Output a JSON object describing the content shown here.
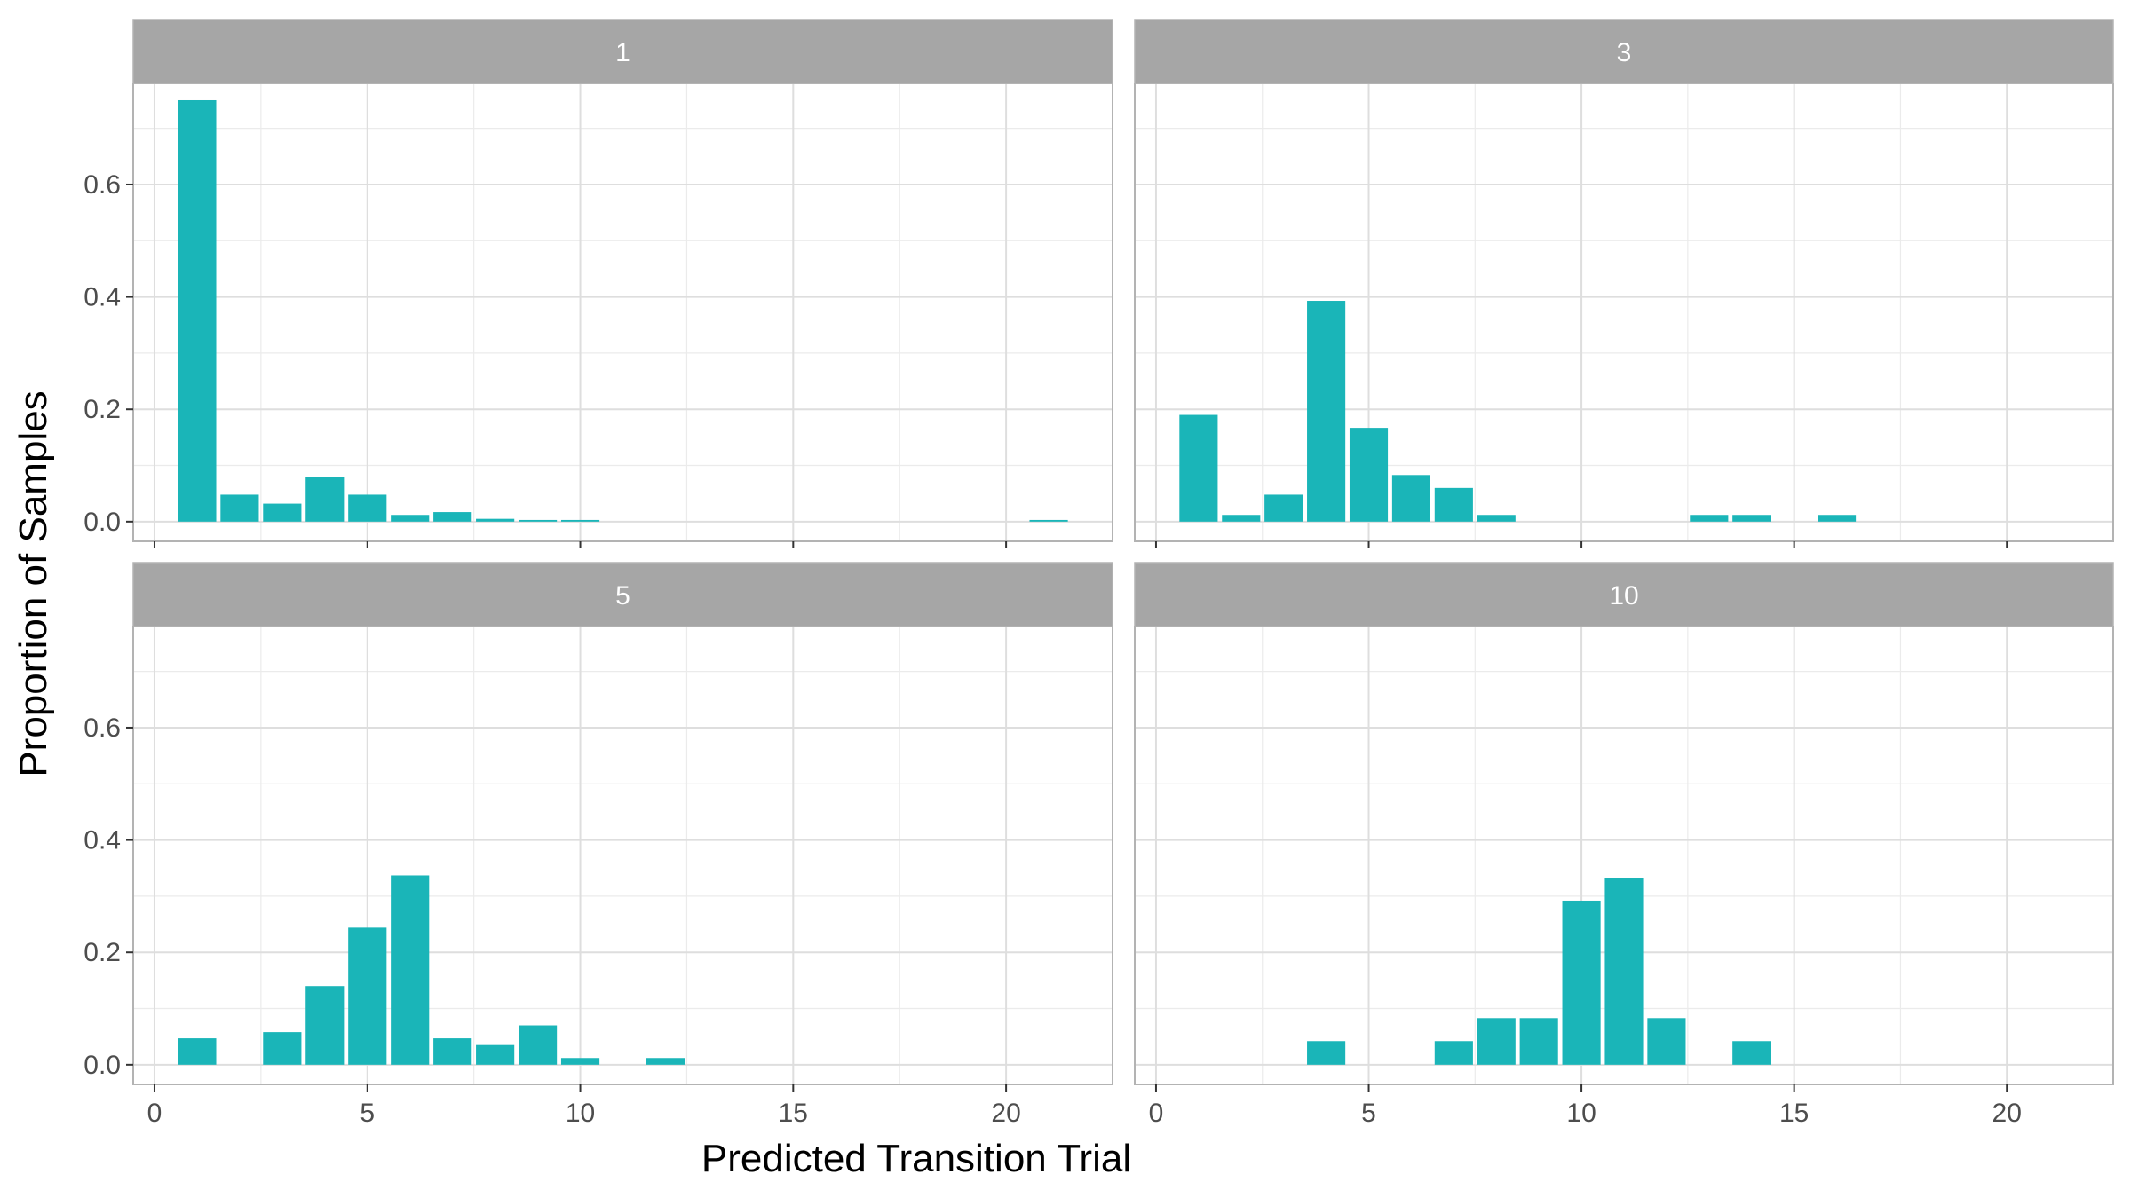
{
  "chart_data": {
    "type": "bar",
    "ylabel": "Proportion of Samples",
    "xlabel": "Predicted Transition Trial",
    "xlim": [
      -0.5,
      22.5
    ],
    "ylim": [
      -0.035,
      0.78
    ],
    "x_ticks": [
      0,
      5,
      10,
      15,
      20
    ],
    "x_tick_labels": [
      "0",
      "5",
      "10",
      "15",
      "20"
    ],
    "y_ticks": [
      0.0,
      0.2,
      0.4,
      0.6
    ],
    "y_tick_labels": [
      "0.0",
      "0.2",
      "0.4",
      "0.6"
    ],
    "grid": true,
    "legend": "none",
    "bar_color": "#1AB5B8",
    "strip_color": "#A6A6A6",
    "panels": [
      {
        "label": "1",
        "x": [
          1,
          2,
          3,
          4,
          5,
          6,
          7,
          8,
          9,
          10,
          21
        ],
        "values": [
          0.75,
          0.048,
          0.032,
          0.079,
          0.048,
          0.012,
          0.017,
          0.005,
          0.003,
          0.003,
          0.003
        ]
      },
      {
        "label": "3",
        "x": [
          1,
          2,
          3,
          4,
          5,
          6,
          7,
          8,
          13,
          14,
          16
        ],
        "values": [
          0.19,
          0.012,
          0.048,
          0.393,
          0.167,
          0.083,
          0.06,
          0.012,
          0.012,
          0.012,
          0.012
        ]
      },
      {
        "label": "5",
        "x": [
          1,
          3,
          4,
          5,
          6,
          7,
          8,
          9,
          10,
          12
        ],
        "values": [
          0.047,
          0.058,
          0.14,
          0.244,
          0.337,
          0.047,
          0.035,
          0.07,
          0.012,
          0.012
        ]
      },
      {
        "label": "10",
        "x": [
          4,
          7,
          8,
          9,
          10,
          11,
          12,
          14
        ],
        "values": [
          0.042,
          0.042,
          0.083,
          0.083,
          0.292,
          0.333,
          0.083,
          0.042
        ]
      }
    ]
  }
}
